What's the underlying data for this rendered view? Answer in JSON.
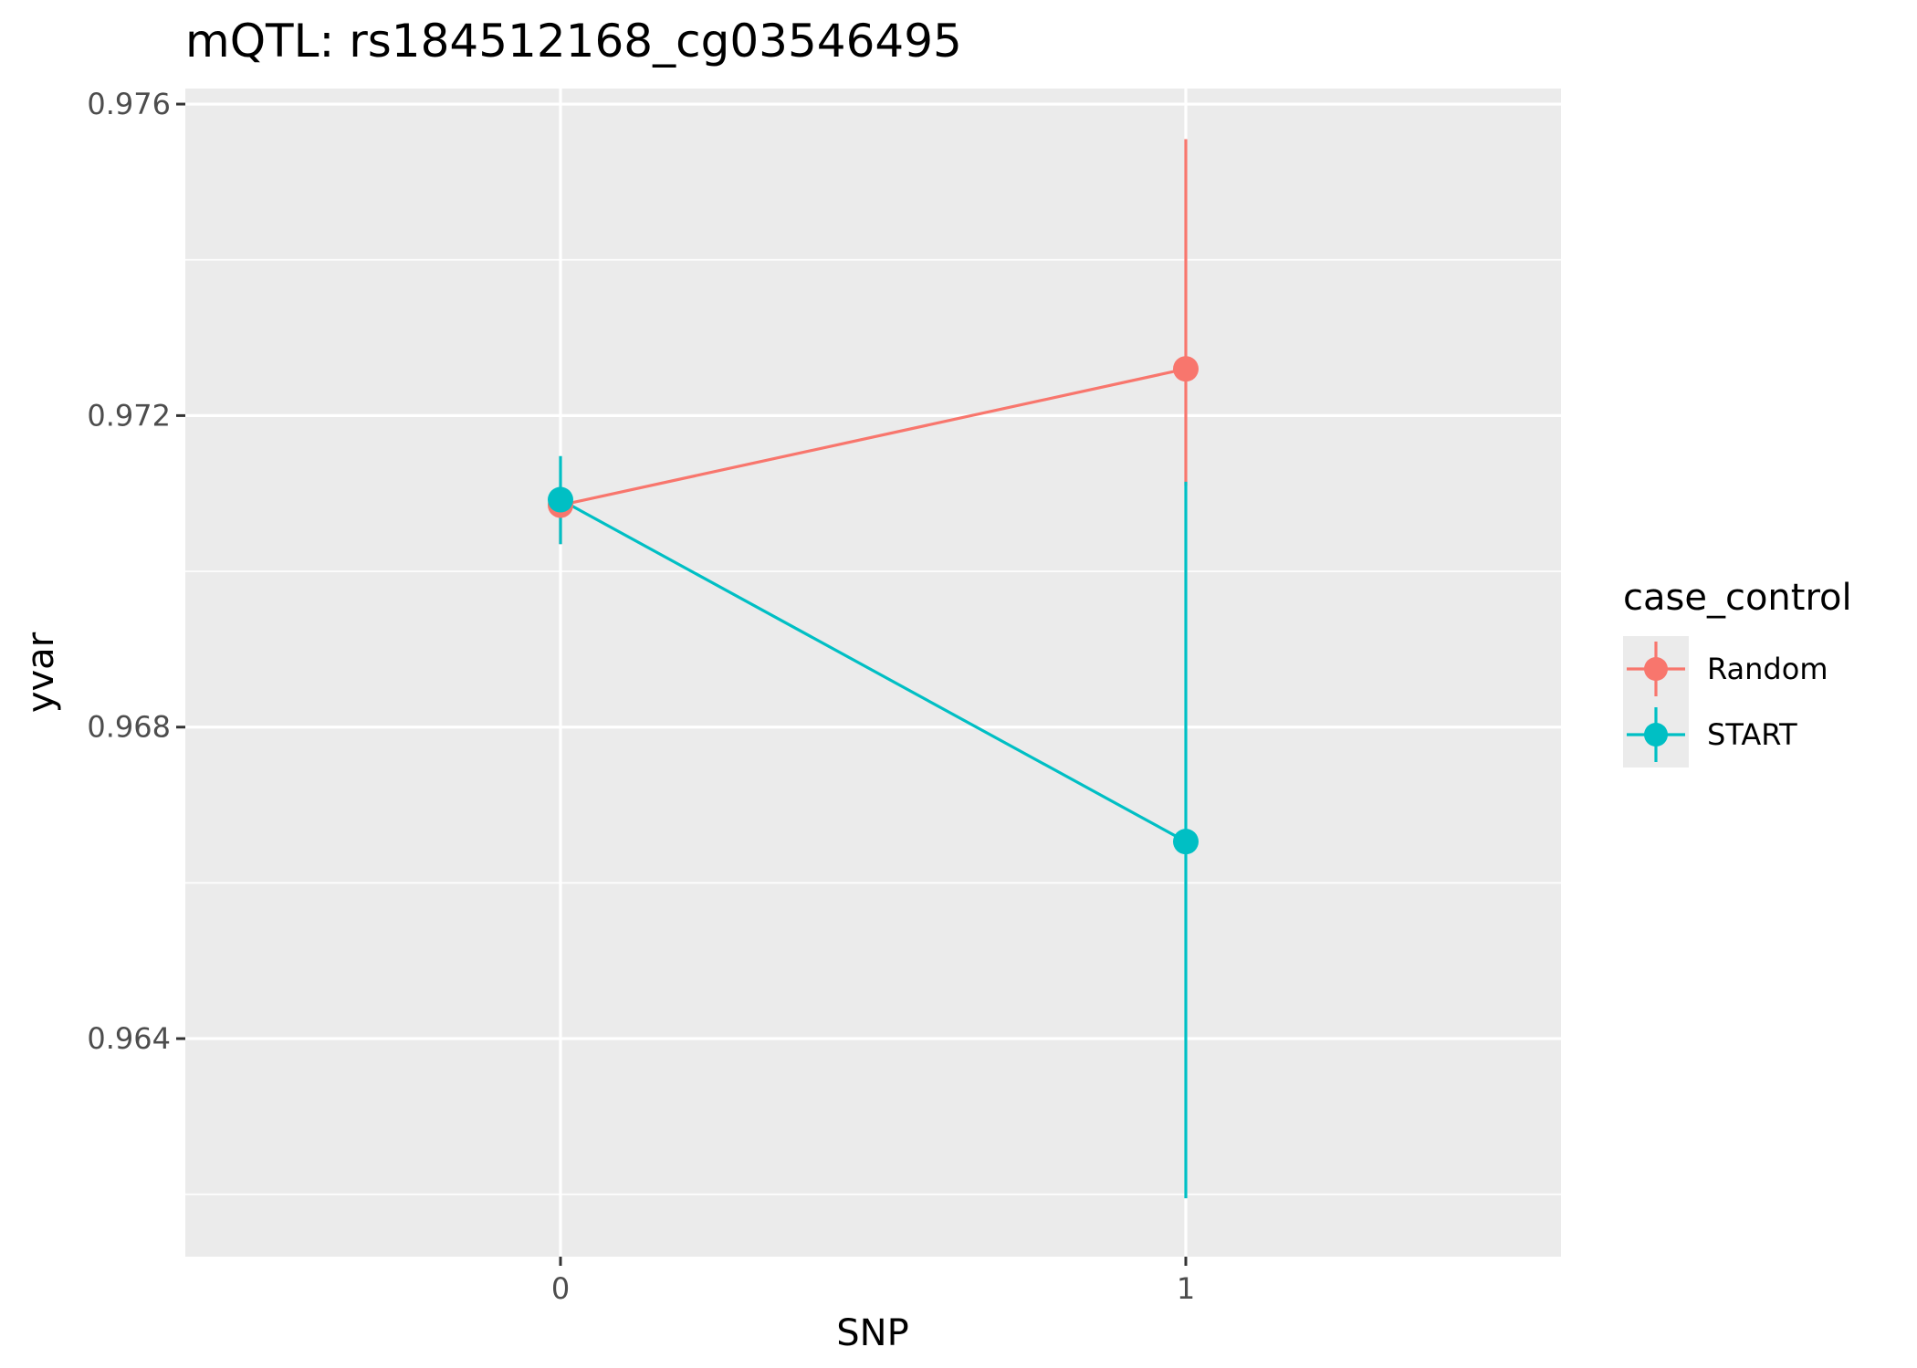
{
  "chart_data": {
    "type": "line",
    "title": "mQTL: rs184512168_cg03546495",
    "xlabel": "SNP",
    "ylabel": "yvar",
    "categories": [
      "0",
      "1"
    ],
    "ylim": [
      0.9612,
      0.9762
    ],
    "yticks": [
      0.964,
      0.968,
      0.972,
      0.976
    ],
    "ytick_labels": [
      "0.964",
      "0.968",
      "0.972",
      "0.976"
    ],
    "grid": true,
    "legend": {
      "title": "case_control",
      "placement": "right"
    },
    "series": [
      {
        "name": "Random",
        "color": "#F8766D",
        "values": [
          0.97085,
          0.9726
        ],
        "error_low": [
          0.97035,
          0.9711
        ],
        "error_high": [
          0.97105,
          0.97555
        ]
      },
      {
        "name": "START",
        "color": "#00BFC4",
        "values": [
          0.97092,
          0.96653
        ],
        "error_low": [
          0.97035,
          0.96195
        ],
        "error_high": [
          0.97148,
          0.97115
        ]
      }
    ]
  }
}
